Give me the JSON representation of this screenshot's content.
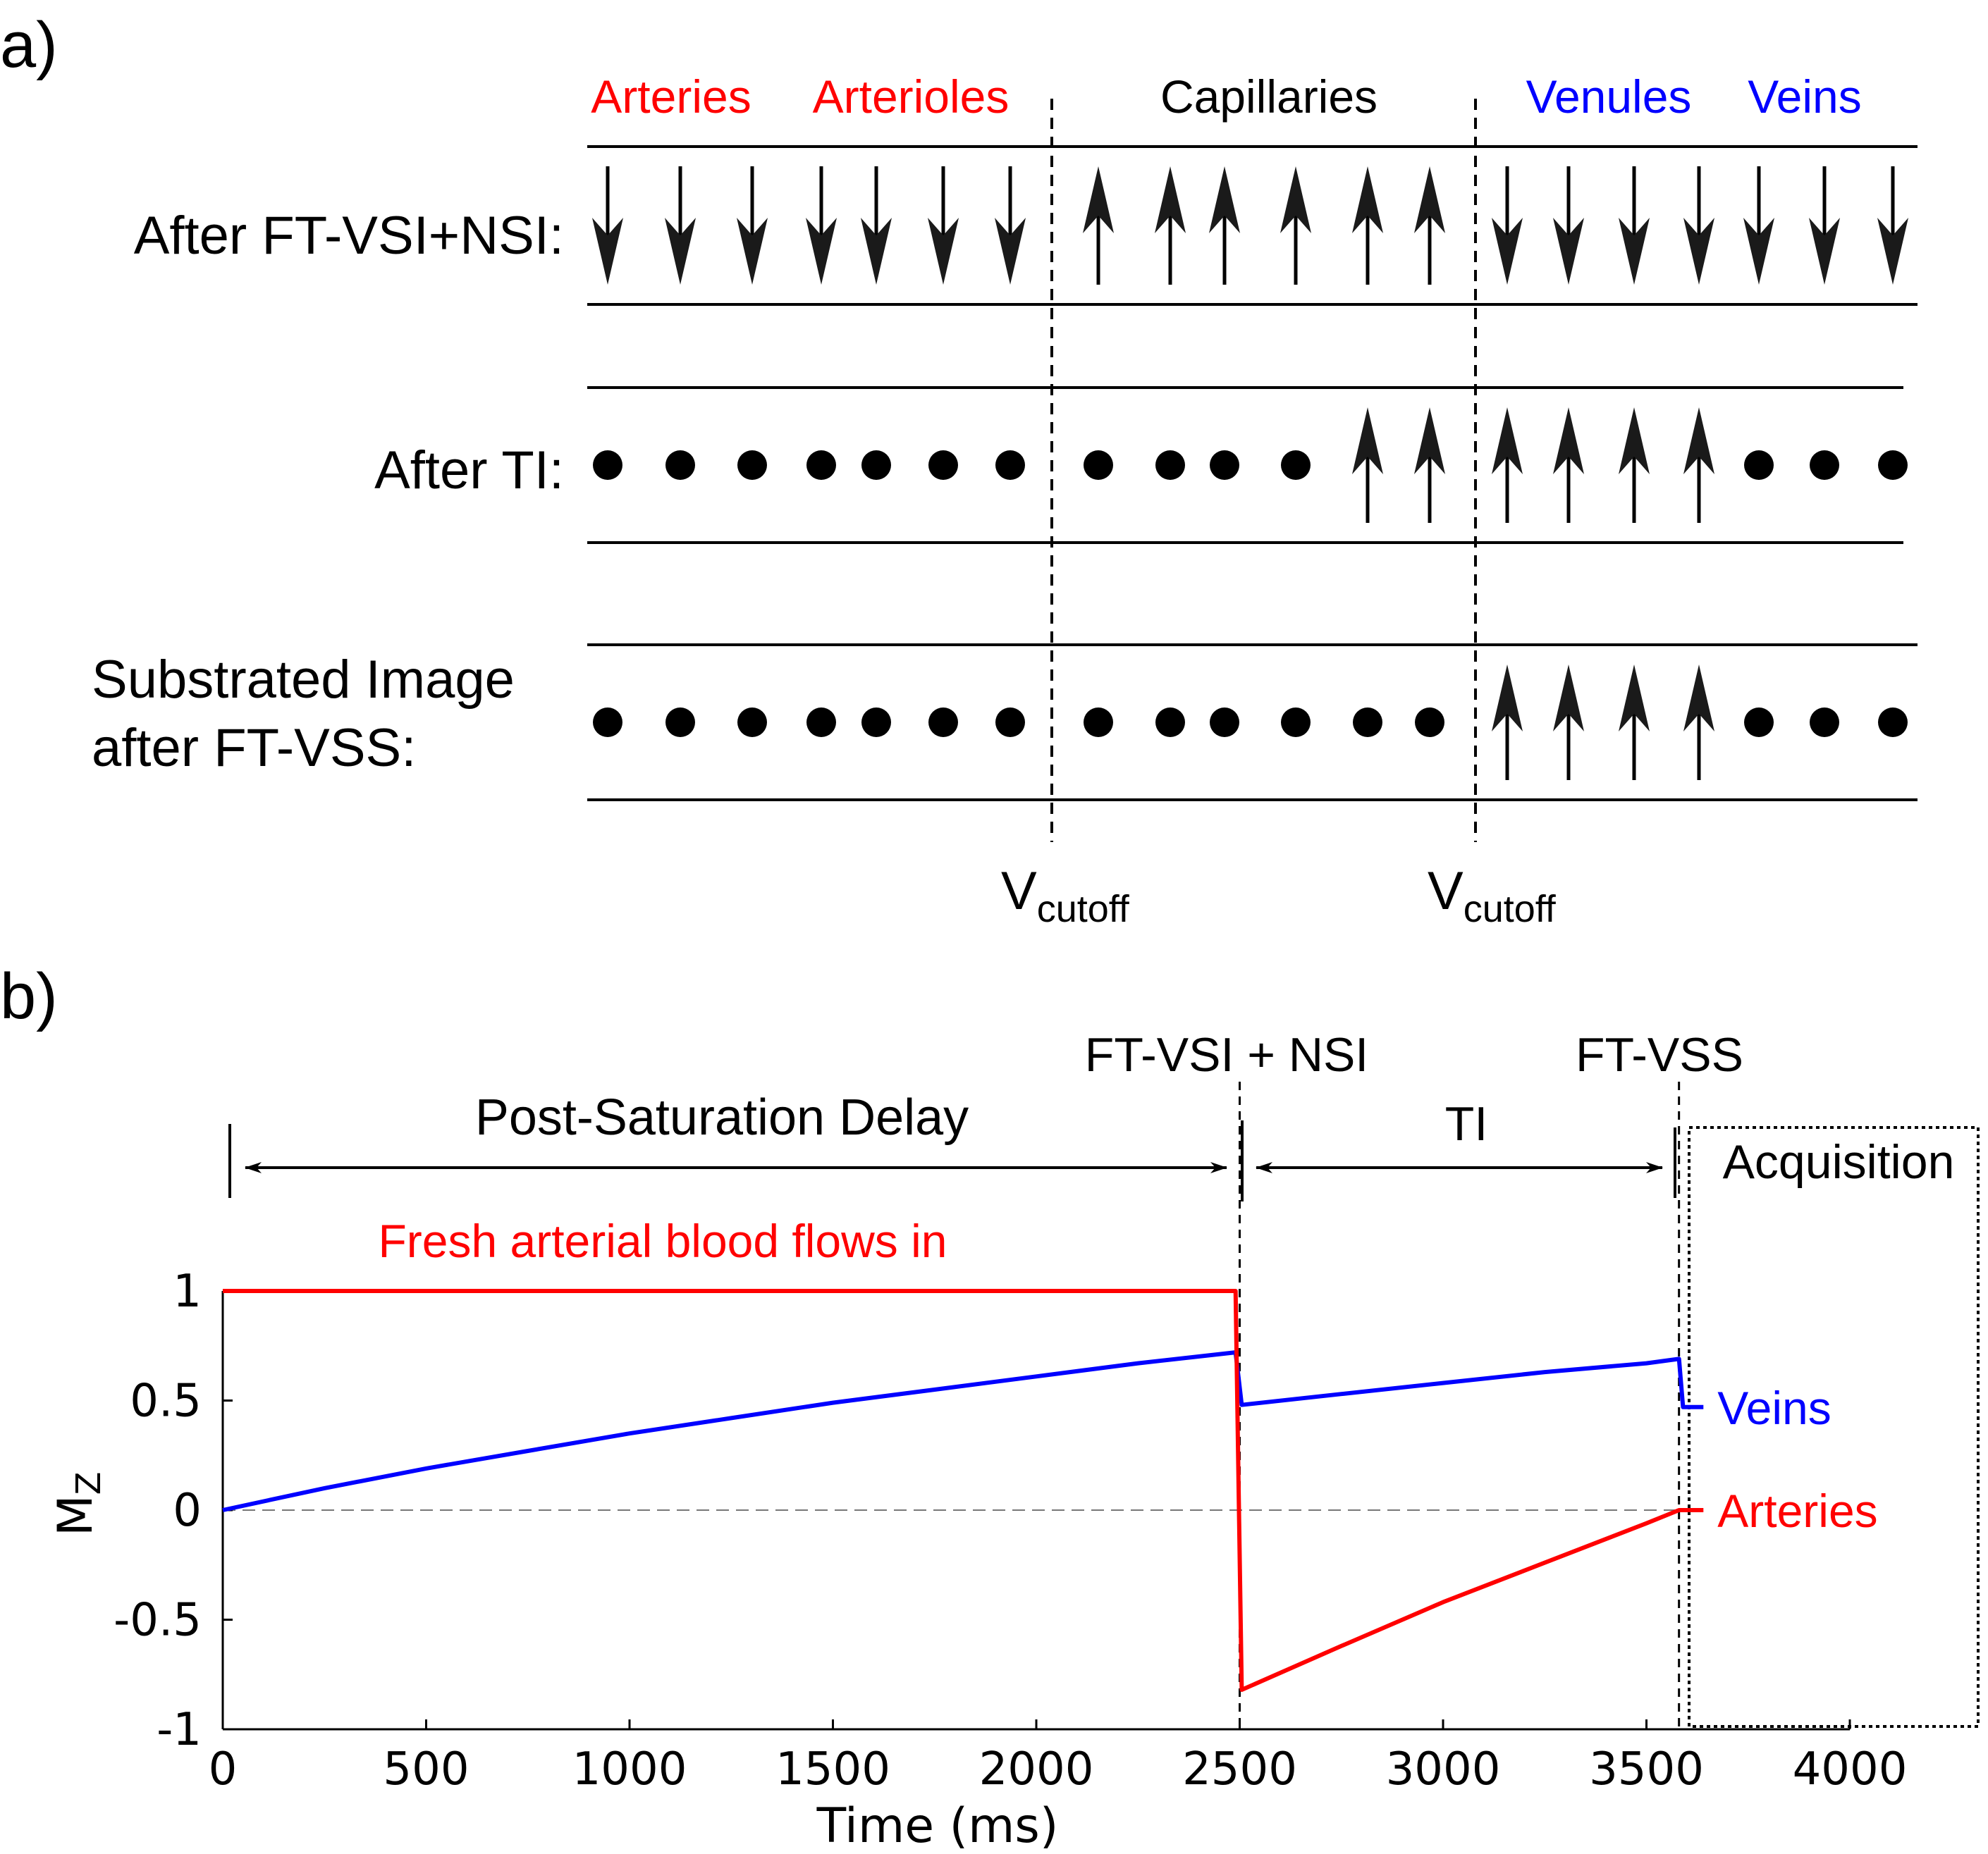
{
  "panel_a": {
    "label": "a)",
    "categories": [
      {
        "text": "Arteries",
        "color": "#ff0000"
      },
      {
        "text": "Arterioles",
        "color": "#ff0000"
      },
      {
        "text": "Capillaries",
        "color": "#000000"
      },
      {
        "text": "Venules",
        "color": "#0000ff"
      },
      {
        "text": "Veins",
        "color": "#0000ff"
      }
    ],
    "rows": [
      {
        "label_lines": [
          "After FT-VSI+NSI:"
        ],
        "symbols": [
          "down",
          "down",
          "down",
          "down",
          "down",
          "down",
          "down",
          "up",
          "up",
          "up",
          "up",
          "up",
          "up",
          "down",
          "down",
          "down",
          "down",
          "down",
          "down",
          "down"
        ]
      },
      {
        "label_lines": [
          "After TI:"
        ],
        "symbols": [
          "dot",
          "dot",
          "dot",
          "dot",
          "dot",
          "dot",
          "dot",
          "dot",
          "dot",
          "dot",
          "dot",
          "up",
          "up",
          "up",
          "up",
          "up",
          "up",
          "dot",
          "dot",
          "dot"
        ]
      },
      {
        "label_lines": [
          "Substrated Image",
          "after FT-VSS:"
        ],
        "symbols": [
          "dot",
          "dot",
          "dot",
          "dot",
          "dot",
          "dot",
          "dot",
          "dot",
          "dot",
          "dot",
          "dot",
          "dot",
          "dot",
          "up",
          "up",
          "up",
          "up",
          "dot",
          "dot",
          "dot"
        ]
      }
    ],
    "cutoff_main": "V",
    "cutoff_sub": "cutoff"
  },
  "panel_b": {
    "label": "b)",
    "events": {
      "vsi": "FT-VSI + NSI",
      "vss": "FT-VSS",
      "psd": "Post-Saturation Delay",
      "ti": "TI",
      "acq": "Acquisition"
    },
    "fresh_label": "Fresh arterial blood flows in"
  },
  "chart_data": {
    "type": "line",
    "xlabel": "Time (ms)",
    "ylabel_main": "M",
    "ylabel_sub": "Z",
    "xlim": [
      0,
      4000
    ],
    "ylim": [
      -1,
      1
    ],
    "xticks": [
      0,
      500,
      1000,
      1500,
      2000,
      2500,
      3000,
      3500,
      4000
    ],
    "yticks": [
      1,
      0.5,
      0,
      -0.5,
      -1
    ],
    "ytick_labels": [
      "1",
      "0.5",
      "0",
      "-0.5",
      "-1"
    ],
    "zero_line": "dashed",
    "events_ms": {
      "vsi": 2500,
      "vss": 3580
    },
    "series": [
      {
        "name": "Veins",
        "color": "#0000ff",
        "points": [
          [
            0,
            0
          ],
          [
            250,
            0.1
          ],
          [
            500,
            0.19
          ],
          [
            750,
            0.27
          ],
          [
            1000,
            0.35
          ],
          [
            1250,
            0.42
          ],
          [
            1500,
            0.49
          ],
          [
            1750,
            0.55
          ],
          [
            2000,
            0.61
          ],
          [
            2250,
            0.67
          ],
          [
            2490,
            0.72
          ],
          [
            2505,
            0.48
          ],
          [
            2750,
            0.53
          ],
          [
            3000,
            0.58
          ],
          [
            3250,
            0.63
          ],
          [
            3500,
            0.67
          ],
          [
            3580,
            0.69
          ],
          [
            3590,
            0.47
          ],
          [
            3640,
            0.47
          ]
        ]
      },
      {
        "name": "Arteries",
        "color": "#ff0000",
        "points": [
          [
            0,
            1
          ],
          [
            2490,
            1
          ],
          [
            2505,
            -0.82
          ],
          [
            2750,
            -0.62
          ],
          [
            3000,
            -0.42
          ],
          [
            3250,
            -0.24
          ],
          [
            3500,
            -0.06
          ],
          [
            3580,
            0
          ],
          [
            3640,
            0
          ]
        ]
      }
    ]
  }
}
